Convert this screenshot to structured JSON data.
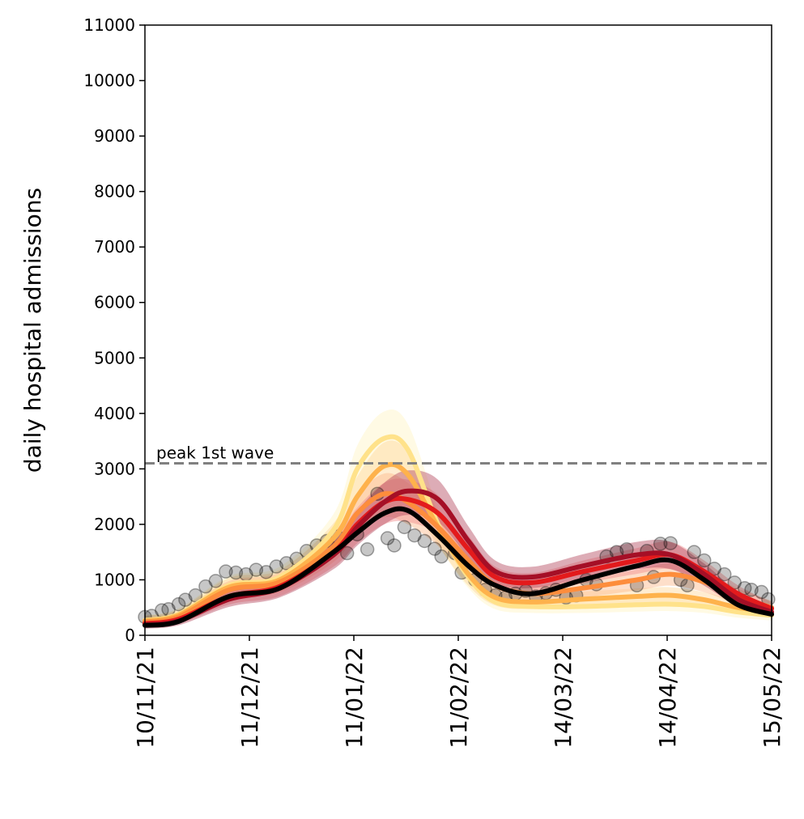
{
  "chart_data": {
    "type": "line",
    "title": "",
    "xlabel": "",
    "ylabel": "daily hospital admissions",
    "ylim": [
      0,
      11000
    ],
    "yticks": [
      0,
      1000,
      2000,
      3000,
      4000,
      5000,
      6000,
      7000,
      8000,
      9000,
      10000,
      11000
    ],
    "xlim": [
      "2021-11-10",
      "2022-05-15"
    ],
    "xticks": [
      {
        "date": "2021-11-10",
        "label": "10/11/21"
      },
      {
        "date": "2021-12-11",
        "label": "11/12/21"
      },
      {
        "date": "2022-01-11",
        "label": "11/01/22"
      },
      {
        "date": "2022-02-11",
        "label": "11/02/22"
      },
      {
        "date": "2022-03-14",
        "label": "14/03/22"
      },
      {
        "date": "2022-04-14",
        "label": "14/04/22"
      },
      {
        "date": "2022-05-15",
        "label": "15/05/22"
      }
    ],
    "grid": false,
    "reference_line": {
      "y": 3100,
      "label": "peak 1st wave",
      "color": "#808080",
      "style": "dashed"
    },
    "observed": {
      "color": "#000000",
      "points": [
        [
          "2021-11-10",
          330
        ],
        [
          "2021-11-12",
          350
        ],
        [
          "2021-11-15",
          450
        ],
        [
          "2021-11-17",
          470
        ],
        [
          "2021-11-20",
          560
        ],
        [
          "2021-11-22",
          640
        ],
        [
          "2021-11-25",
          720
        ],
        [
          "2021-11-28",
          880
        ],
        [
          "2021-12-01",
          980
        ],
        [
          "2021-12-04",
          1150
        ],
        [
          "2021-12-07",
          1130
        ],
        [
          "2021-12-10",
          1100
        ],
        [
          "2021-12-13",
          1180
        ],
        [
          "2021-12-16",
          1140
        ],
        [
          "2021-12-19",
          1240
        ],
        [
          "2021-12-22",
          1300
        ],
        [
          "2021-12-25",
          1380
        ],
        [
          "2021-12-28",
          1520
        ],
        [
          "2021-12-31",
          1620
        ],
        [
          "2022-01-03",
          1700
        ],
        [
          "2022-01-06",
          1780
        ],
        [
          "2022-01-09",
          1480
        ],
        [
          "2022-01-12",
          1820
        ],
        [
          "2022-01-15",
          1550
        ],
        [
          "2022-01-18",
          2550
        ],
        [
          "2022-01-21",
          1750
        ],
        [
          "2022-01-23",
          1620
        ],
        [
          "2022-01-26",
          1950
        ],
        [
          "2022-01-29",
          1800
        ],
        [
          "2022-02-01",
          1700
        ],
        [
          "2022-02-04",
          1560
        ],
        [
          "2022-02-06",
          1420
        ],
        [
          "2022-02-10",
          1480
        ],
        [
          "2022-02-12",
          1130
        ],
        [
          "2022-02-16",
          1000
        ],
        [
          "2022-02-19",
          820
        ],
        [
          "2022-02-22",
          720
        ],
        [
          "2022-02-25",
          680
        ],
        [
          "2022-02-28",
          750
        ],
        [
          "2022-03-03",
          800
        ],
        [
          "2022-03-06",
          700
        ],
        [
          "2022-03-09",
          760
        ],
        [
          "2022-03-12",
          820
        ],
        [
          "2022-03-15",
          680
        ],
        [
          "2022-03-18",
          720
        ],
        [
          "2022-03-21",
          1000
        ],
        [
          "2022-03-24",
          920
        ],
        [
          "2022-03-27",
          1420
        ],
        [
          "2022-03-30",
          1500
        ],
        [
          "2022-04-02",
          1550
        ],
        [
          "2022-04-05",
          900
        ],
        [
          "2022-04-08",
          1520
        ],
        [
          "2022-04-10",
          1050
        ],
        [
          "2022-04-12",
          1650
        ],
        [
          "2022-04-15",
          1660
        ],
        [
          "2022-04-18",
          1000
        ],
        [
          "2022-04-20",
          900
        ],
        [
          "2022-04-22",
          1500
        ],
        [
          "2022-04-25",
          1350
        ],
        [
          "2022-04-28",
          1200
        ],
        [
          "2022-05-01",
          1100
        ],
        [
          "2022-05-04",
          950
        ],
        [
          "2022-05-07",
          850
        ],
        [
          "2022-05-09",
          820
        ],
        [
          "2022-05-12",
          780
        ],
        [
          "2022-05-14",
          650
        ]
      ]
    },
    "series": [
      {
        "color": "#FFE28A",
        "band_color": "#FFF3C4",
        "values": [
          [
            "2021-11-10",
            270
          ],
          [
            "2021-11-20",
            380
          ],
          [
            "2021-12-05",
            900
          ],
          [
            "2021-12-20",
            1050
          ],
          [
            "2022-01-05",
            1900
          ],
          [
            "2022-01-12",
            3000
          ],
          [
            "2022-01-20",
            3550
          ],
          [
            "2022-01-27",
            3350
          ],
          [
            "2022-02-05",
            2000
          ],
          [
            "2022-02-14",
            1050
          ],
          [
            "2022-02-22",
            600
          ],
          [
            "2022-03-05",
            520
          ],
          [
            "2022-03-20",
            520
          ],
          [
            "2022-04-05",
            550
          ],
          [
            "2022-04-15",
            560
          ],
          [
            "2022-04-25",
            520
          ],
          [
            "2022-05-05",
            420
          ],
          [
            "2022-05-15",
            360
          ]
        ]
      },
      {
        "color": "#FEB24C",
        "band_color": "#FFD89A",
        "values": [
          [
            "2021-11-10",
            260
          ],
          [
            "2021-11-20",
            360
          ],
          [
            "2021-12-05",
            870
          ],
          [
            "2021-12-20",
            1000
          ],
          [
            "2022-01-05",
            1750
          ],
          [
            "2022-01-12",
            2500
          ],
          [
            "2022-01-20",
            3050
          ],
          [
            "2022-01-27",
            2900
          ],
          [
            "2022-02-05",
            1950
          ],
          [
            "2022-02-14",
            1100
          ],
          [
            "2022-02-22",
            680
          ],
          [
            "2022-03-05",
            600
          ],
          [
            "2022-03-20",
            650
          ],
          [
            "2022-04-05",
            700
          ],
          [
            "2022-04-15",
            720
          ],
          [
            "2022-04-25",
            640
          ],
          [
            "2022-05-05",
            500
          ],
          [
            "2022-05-15",
            420
          ]
        ]
      },
      {
        "color": "#FD8D3C",
        "band_color": "#FDB98A",
        "values": [
          [
            "2021-11-10",
            240
          ],
          [
            "2021-11-20",
            330
          ],
          [
            "2021-12-05",
            820
          ],
          [
            "2021-12-20",
            960
          ],
          [
            "2022-01-05",
            1600
          ],
          [
            "2022-01-12",
            2200
          ],
          [
            "2022-01-20",
            2550
          ],
          [
            "2022-01-27",
            2400
          ],
          [
            "2022-02-05",
            1950
          ],
          [
            "2022-02-14",
            1350
          ],
          [
            "2022-02-22",
            900
          ],
          [
            "2022-03-05",
            750
          ],
          [
            "2022-03-20",
            850
          ],
          [
            "2022-04-05",
            1000
          ],
          [
            "2022-04-15",
            1100
          ],
          [
            "2022-04-25",
            960
          ],
          [
            "2022-05-05",
            700
          ],
          [
            "2022-05-15",
            500
          ]
        ]
      },
      {
        "color": "#E31A1C",
        "band_color": "#F28B8C",
        "values": [
          [
            "2021-11-10",
            210
          ],
          [
            "2021-11-20",
            290
          ],
          [
            "2021-12-05",
            700
          ],
          [
            "2021-12-20",
            880
          ],
          [
            "2022-01-05",
            1500
          ],
          [
            "2022-01-12",
            2000
          ],
          [
            "2022-01-20",
            2400
          ],
          [
            "2022-01-27",
            2450
          ],
          [
            "2022-02-05",
            2200
          ],
          [
            "2022-02-14",
            1550
          ],
          [
            "2022-02-22",
            1050
          ],
          [
            "2022-03-05",
            950
          ],
          [
            "2022-03-20",
            1150
          ],
          [
            "2022-04-05",
            1350
          ],
          [
            "2022-04-15",
            1450
          ],
          [
            "2022-04-25",
            1150
          ],
          [
            "2022-05-05",
            750
          ],
          [
            "2022-05-15",
            480
          ]
        ]
      },
      {
        "color": "#A50F26",
        "band_color": "#B3475E",
        "values": [
          [
            "2021-11-10",
            190
          ],
          [
            "2021-11-20",
            260
          ],
          [
            "2021-12-05",
            650
          ],
          [
            "2021-12-20",
            850
          ],
          [
            "2022-01-05",
            1450
          ],
          [
            "2022-01-12",
            1950
          ],
          [
            "2022-01-20",
            2400
          ],
          [
            "2022-01-27",
            2600
          ],
          [
            "2022-02-05",
            2450
          ],
          [
            "2022-02-14",
            1700
          ],
          [
            "2022-02-22",
            1150
          ],
          [
            "2022-03-05",
            1050
          ],
          [
            "2022-03-20",
            1250
          ],
          [
            "2022-04-05",
            1450
          ],
          [
            "2022-04-15",
            1450
          ],
          [
            "2022-04-25",
            1100
          ],
          [
            "2022-05-05",
            650
          ],
          [
            "2022-05-15",
            420
          ]
        ]
      },
      {
        "color": "#000000",
        "band_color": "",
        "values": [
          [
            "2021-11-10",
            180
          ],
          [
            "2021-11-20",
            250
          ],
          [
            "2021-12-05",
            700
          ],
          [
            "2021-12-20",
            850
          ],
          [
            "2022-01-05",
            1500
          ],
          [
            "2022-01-12",
            1850
          ],
          [
            "2022-01-20",
            2200
          ],
          [
            "2022-01-27",
            2250
          ],
          [
            "2022-02-05",
            1800
          ],
          [
            "2022-02-14",
            1250
          ],
          [
            "2022-02-22",
            900
          ],
          [
            "2022-03-05",
            750
          ],
          [
            "2022-03-20",
            1000
          ],
          [
            "2022-04-05",
            1250
          ],
          [
            "2022-04-15",
            1350
          ],
          [
            "2022-04-25",
            1000
          ],
          [
            "2022-05-05",
            550
          ],
          [
            "2022-05-15",
            380
          ]
        ]
      }
    ]
  }
}
